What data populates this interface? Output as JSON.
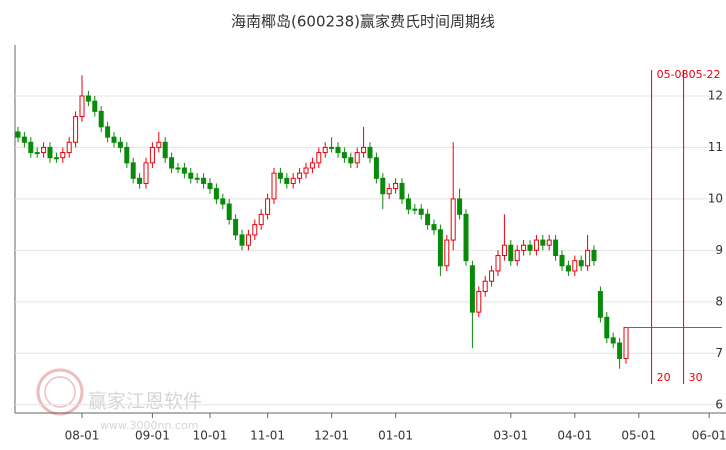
{
  "chart_data": {
    "type": "candlestick",
    "title": "海南椰岛(600238)赢家费氏时间周期线",
    "categories": [
      null,
      null,
      null,
      null,
      null,
      null,
      null,
      null,
      null,
      null,
      "08-01",
      null,
      null,
      null,
      null,
      null,
      null,
      null,
      null,
      null,
      null,
      "09-01",
      null,
      null,
      null,
      null,
      null,
      null,
      null,
      null,
      "10-01",
      null,
      null,
      null,
      null,
      null,
      null,
      null,
      null,
      "11-01",
      null,
      null,
      null,
      null,
      null,
      null,
      null,
      null,
      null,
      "12-01",
      null,
      null,
      null,
      null,
      null,
      null,
      null,
      null,
      null,
      "01-01",
      null,
      null,
      null,
      null,
      null,
      null,
      null,
      null,
      null,
      null,
      null,
      null,
      null,
      null,
      null,
      null,
      null,
      "03-01",
      null,
      null,
      null,
      null,
      null,
      null,
      null,
      null,
      null,
      "04-01",
      null,
      null,
      null,
      null,
      null,
      null,
      null,
      null,
      null,
      "05-01",
      null,
      "05-08",
      null,
      null,
      null,
      null,
      "05-22",
      null,
      null,
      null,
      "06-01",
      null,
      null
    ],
    "open": [
      11.3,
      11.2,
      11.1,
      10.9,
      10.9,
      11.0,
      10.8,
      10.8,
      10.9,
      11.1,
      11.6,
      12.0,
      11.9,
      11.7,
      11.4,
      11.2,
      11.1,
      11.0,
      10.7,
      10.4,
      10.3,
      10.7,
      11.0,
      11.1,
      10.8,
      10.6,
      10.6,
      10.5,
      10.4,
      10.4,
      10.3,
      10.2,
      10.0,
      9.9,
      9.6,
      9.3,
      9.1,
      9.3,
      9.5,
      9.7,
      10.0,
      10.5,
      10.4,
      10.3,
      10.4,
      10.5,
      10.6,
      10.7,
      10.9,
      11.0,
      11.0,
      10.9,
      10.8,
      10.7,
      10.9,
      11.0,
      10.8,
      10.4,
      10.1,
      10.2,
      10.3,
      10.0,
      9.8,
      9.8,
      9.7,
      9.5,
      9.4,
      8.7,
      9.2,
      10.0,
      9.7,
      8.7,
      7.8,
      8.2,
      8.4,
      8.6,
      8.9,
      9.1,
      8.8,
      9.0,
      9.1,
      9.0,
      9.2,
      9.1,
      9.2,
      8.9,
      8.7,
      8.6,
      8.8,
      8.7,
      9.0,
      8.2,
      7.7,
      7.3,
      7.2,
      6.9,
      null,
      null,
      null,
      null,
      null,
      null,
      null,
      null,
      null,
      null,
      null,
      null,
      null,
      null,
      null
    ],
    "high": [
      11.4,
      11.3,
      11.2,
      11.0,
      11.1,
      11.1,
      10.9,
      11.0,
      11.2,
      11.7,
      12.4,
      12.1,
      12.0,
      11.8,
      11.5,
      11.3,
      11.2,
      11.1,
      10.8,
      10.5,
      10.8,
      11.1,
      11.3,
      11.2,
      10.9,
      10.7,
      10.7,
      10.6,
      10.5,
      10.5,
      10.4,
      10.3,
      10.1,
      10.0,
      9.7,
      9.4,
      9.4,
      9.6,
      9.8,
      10.1,
      10.6,
      10.6,
      10.5,
      10.5,
      10.6,
      10.7,
      10.8,
      11.0,
      11.1,
      11.2,
      11.1,
      11.0,
      10.9,
      11.0,
      11.4,
      11.1,
      10.9,
      10.5,
      10.3,
      10.4,
      10.4,
      10.1,
      9.9,
      9.9,
      9.8,
      9.6,
      9.5,
      9.3,
      11.1,
      10.2,
      9.8,
      8.8,
      8.3,
      8.5,
      8.7,
      9.0,
      9.7,
      9.2,
      9.1,
      9.2,
      9.2,
      9.3,
      9.3,
      9.3,
      9.3,
      9.0,
      8.8,
      8.9,
      8.9,
      9.3,
      9.1,
      8.3,
      7.8,
      7.4,
      7.3,
      7.5,
      null,
      null,
      null,
      null,
      null,
      null,
      null,
      null,
      null,
      null,
      null,
      null,
      null,
      null,
      null
    ],
    "low": [
      11.1,
      11.0,
      10.8,
      10.8,
      10.8,
      10.7,
      10.7,
      10.7,
      10.8,
      11.0,
      11.5,
      11.8,
      11.6,
      11.3,
      11.1,
      11.0,
      10.9,
      10.6,
      10.3,
      10.2,
      10.2,
      10.6,
      10.9,
      10.7,
      10.5,
      10.5,
      10.4,
      10.3,
      10.3,
      10.2,
      10.1,
      9.9,
      9.8,
      9.5,
      9.2,
      9.0,
      9.0,
      9.2,
      9.4,
      9.6,
      9.9,
      10.3,
      10.2,
      10.2,
      10.3,
      10.4,
      10.5,
      10.6,
      10.8,
      10.9,
      10.8,
      10.7,
      10.6,
      10.6,
      10.8,
      10.7,
      10.3,
      9.8,
      10.0,
      10.1,
      9.9,
      9.7,
      9.7,
      9.6,
      9.4,
      9.3,
      8.5,
      8.6,
      9.0,
      9.6,
      8.7,
      7.1,
      7.7,
      8.1,
      8.3,
      8.5,
      8.8,
      8.7,
      8.7,
      8.9,
      8.9,
      8.9,
      9.0,
      9.0,
      8.8,
      8.6,
      8.5,
      8.5,
      8.6,
      8.6,
      8.7,
      7.6,
      7.2,
      7.1,
      6.7,
      6.8,
      null,
      null,
      null,
      null,
      null,
      null,
      null,
      null,
      null,
      null,
      null,
      null,
      null,
      null,
      null
    ],
    "close": [
      11.2,
      11.1,
      10.9,
      10.9,
      11.0,
      10.8,
      10.8,
      10.9,
      11.1,
      11.6,
      12.0,
      11.9,
      11.7,
      11.4,
      11.2,
      11.1,
      11.0,
      10.7,
      10.4,
      10.3,
      10.7,
      11.0,
      11.1,
      10.8,
      10.6,
      10.6,
      10.5,
      10.4,
      10.4,
      10.3,
      10.2,
      10.0,
      9.9,
      9.6,
      9.3,
      9.1,
      9.3,
      9.5,
      9.7,
      10.0,
      10.5,
      10.4,
      10.3,
      10.4,
      10.5,
      10.6,
      10.7,
      10.9,
      11.0,
      11.0,
      10.9,
      10.8,
      10.7,
      10.9,
      11.0,
      10.8,
      10.4,
      10.1,
      10.2,
      10.3,
      10.0,
      9.8,
      9.8,
      9.7,
      9.5,
      9.4,
      8.7,
      9.2,
      10.0,
      9.7,
      8.8,
      7.8,
      8.2,
      8.4,
      8.6,
      8.9,
      9.1,
      8.8,
      9.0,
      9.1,
      9.0,
      9.2,
      9.1,
      9.2,
      8.9,
      8.7,
      8.6,
      8.8,
      8.7,
      9.0,
      8.8,
      7.7,
      7.3,
      7.2,
      6.9,
      7.5,
      null,
      null,
      null,
      null,
      null,
      null,
      null,
      null,
      null,
      null,
      null,
      null,
      null,
      null,
      null
    ],
    "up_color": "#e8000b",
    "down_color": "#0a8a0a",
    "ylim": [
      5.84,
      12.99
    ],
    "yticks": [
      6,
      7,
      8,
      9,
      10,
      11,
      12
    ],
    "grid": true,
    "cycle_lines": [
      {
        "date": "05-08",
        "count": 20
      },
      {
        "date": "05-22",
        "count": 30
      }
    ],
    "cycle_color": "#e8000b",
    "watermark": {
      "brand": "赢家江恩软件",
      "url": "www.3000nn.com"
    }
  }
}
